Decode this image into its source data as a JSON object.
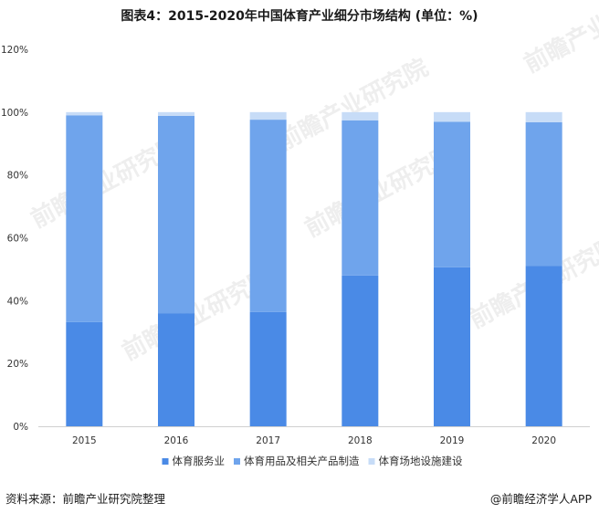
{
  "page": {
    "title": "图表4：2015-2020年中国体育产业细分市场结构 (单位：%)",
    "source": "资料来源：前瞻产业研究院整理",
    "brand": "@前瞻经济学人APP",
    "watermark_text": "前瞻产业研究院"
  },
  "chart_data": {
    "type": "bar",
    "stacked": true,
    "title": "图表4：2015-2020年中国体育产业细分市场结构 (单位：%)",
    "categories": [
      "2015",
      "2016",
      "2017",
      "2018",
      "2019",
      "2020"
    ],
    "series": [
      {
        "name": "体育服务业",
        "color": "#4a8ae6",
        "values": [
          33.2,
          36.0,
          36.4,
          48.0,
          50.6,
          51.0
        ]
      },
      {
        "name": "体育用品及相关产品制造",
        "color": "#6fa4ec",
        "values": [
          65.8,
          62.8,
          61.2,
          49.4,
          46.3,
          45.8
        ]
      },
      {
        "name": "体育场地设施建设",
        "color": "#c7dcf7",
        "values": [
          1.0,
          1.2,
          2.4,
          2.6,
          3.1,
          3.2
        ]
      }
    ],
    "y_ticks": [
      "0%",
      "20%",
      "40%",
      "60%",
      "80%",
      "100%",
      "120%"
    ],
    "ylim": [
      0,
      120
    ],
    "y_tick_step": 20,
    "grid": false,
    "legend_position": "bottom"
  }
}
